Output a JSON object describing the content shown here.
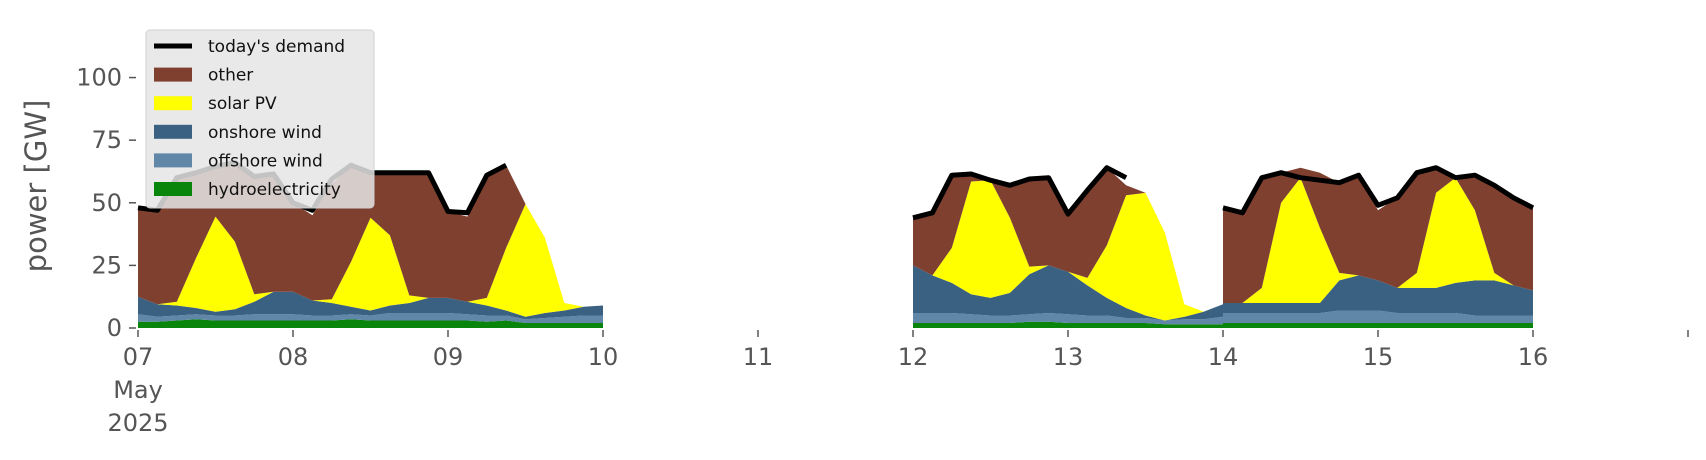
{
  "chart_data": {
    "type": "area",
    "ylabel": "power [GW]",
    "ylim": [
      0,
      115
    ],
    "xlim": [
      "2025-05-07T00:00",
      "2025-05-17T00:00"
    ],
    "yticks": [
      0,
      25,
      50,
      75,
      100
    ],
    "xticks": [
      {
        "x": "2025-05-07T00:00",
        "label": "07",
        "sublabel": [
          "May",
          "2025"
        ]
      },
      {
        "x": "2025-05-08T00:00",
        "label": "08"
      },
      {
        "x": "2025-05-09T00:00",
        "label": "09"
      },
      {
        "x": "2025-05-10T00:00",
        "label": "10"
      },
      {
        "x": "2025-05-11T00:00",
        "label": "11"
      },
      {
        "x": "2025-05-12T00:00",
        "label": "12"
      },
      {
        "x": "2025-05-13T00:00",
        "label": "13"
      },
      {
        "x": "2025-05-14T00:00",
        "label": "14"
      },
      {
        "x": "2025-05-15T00:00",
        "label": "15"
      },
      {
        "x": "2025-05-16T00:00",
        "label": "16"
      }
    ],
    "grid": false,
    "legend_position": "upper-left",
    "legend": [
      {
        "name": "today's demand",
        "kind": "line",
        "color": "#000000"
      },
      {
        "name": "other",
        "kind": "patch",
        "color": "#7f4030"
      },
      {
        "name": "solar PV",
        "kind": "patch",
        "color": "#ffff00"
      },
      {
        "name": "onshore wind",
        "kind": "patch",
        "color": "#3b6182"
      },
      {
        "name": "offshore wind",
        "kind": "patch",
        "color": "#6087a8"
      },
      {
        "name": "hydroelectricity",
        "kind": "patch",
        "color": "#08850a"
      }
    ],
    "segments": [
      {
        "x": [
          "2025-05-07T00:00",
          "2025-05-07T03:00",
          "2025-05-07T06:00",
          "2025-05-07T09:00",
          "2025-05-07T12:00",
          "2025-05-07T15:00",
          "2025-05-07T18:00",
          "2025-05-07T21:00",
          "2025-05-08T00:00",
          "2025-05-08T03:00",
          "2025-05-08T06:00",
          "2025-05-08T09:00",
          "2025-05-08T12:00",
          "2025-05-08T15:00",
          "2025-05-08T18:00",
          "2025-05-08T21:00",
          "2025-05-09T00:00",
          "2025-05-09T03:00",
          "2025-05-09T06:00",
          "2025-05-09T09:00",
          "2025-05-09T12:00",
          "2025-05-09T15:00",
          "2025-05-09T18:00",
          "2025-05-09T21:00",
          "2025-05-10T00:00"
        ],
        "hydroelectricity": [
          2.5,
          2.5,
          3,
          3.5,
          3,
          3,
          3,
          3,
          3,
          3,
          3,
          3.5,
          3,
          3,
          3,
          3,
          3,
          3,
          2.5,
          3,
          2,
          2,
          2,
          2,
          2
        ],
        "offshore wind": [
          3,
          2,
          2,
          2,
          2,
          2,
          2.5,
          2.5,
          2.5,
          2,
          2,
          2,
          2,
          3,
          3,
          3,
          3,
          2.5,
          2.5,
          2,
          1.5,
          2,
          2.5,
          3,
          3
        ],
        "onshore wind": [
          7,
          5,
          4,
          2.5,
          1.5,
          2.5,
          5,
          9,
          9,
          6,
          5,
          3,
          2,
          3,
          4,
          6,
          6,
          5,
          4,
          2,
          1,
          2,
          2.5,
          3.5,
          4
        ],
        "solar PV": [
          0,
          0,
          1.5,
          20,
          38,
          27,
          3,
          0,
          0,
          0,
          1.5,
          18,
          37,
          28,
          3,
          0,
          0,
          0,
          3,
          25,
          45,
          30,
          3,
          0,
          0
        ],
        "other": [
          35.5,
          37.5,
          49.5,
          34,
          20,
          31.5,
          47,
          47,
          35.5,
          34,
          46,
          38.5,
          18,
          25,
          49,
          50,
          34.5,
          34,
          49,
          33,
          0,
          0,
          0,
          0,
          0
        ],
        "demand": [
          48,
          47,
          60,
          62,
          64.5,
          66,
          60.5,
          61.5,
          50,
          47,
          59.5,
          65,
          62,
          62,
          62,
          62,
          46.5,
          46,
          61,
          65,
          null,
          null,
          null,
          null,
          null
        ]
      },
      {
        "x": [
          "2025-05-12T00:00",
          "2025-05-12T03:00",
          "2025-05-12T06:00",
          "2025-05-12T09:00",
          "2025-05-12T12:00",
          "2025-05-12T15:00",
          "2025-05-12T18:00",
          "2025-05-12T21:00",
          "2025-05-13T00:00",
          "2025-05-13T03:00",
          "2025-05-13T06:00",
          "2025-05-13T09:00",
          "2025-05-13T12:00",
          "2025-05-13T15:00",
          "2025-05-13T18:00",
          "2025-05-13T21:00",
          "2025-05-14T00:00"
        ],
        "hydroelectricity": [
          2,
          2,
          2,
          2,
          2,
          2,
          2.5,
          2.5,
          2,
          2,
          2,
          2,
          2,
          1.5,
          1.5,
          1.5,
          1.5
        ],
        "offshore wind": [
          4,
          4,
          4,
          3.5,
          3,
          3,
          3,
          3.5,
          3.5,
          3,
          3,
          2,
          2,
          1.5,
          2,
          2,
          3
        ],
        "onshore wind": [
          19,
          15,
          12,
          8,
          7,
          9,
          16,
          19,
          17,
          12,
          7,
          4,
          1,
          0,
          1,
          3,
          5
        ],
        "solar PV": [
          0,
          0,
          14,
          45,
          47,
          30,
          3,
          0,
          0,
          3,
          21,
          45,
          49,
          35,
          5,
          0,
          0
        ],
        "other": [
          19,
          25,
          29,
          3,
          0,
          13,
          35,
          35,
          23,
          35,
          31,
          4,
          0,
          0,
          0,
          0,
          0
        ],
        "demand": [
          44,
          46,
          61,
          61.5,
          59,
          57,
          59.5,
          60,
          45.5,
          55,
          64,
          60,
          null,
          null,
          null,
          null,
          null
        ]
      },
      {
        "x": [
          "2025-05-14T00:00",
          "2025-05-14T03:00",
          "2025-05-14T06:00",
          "2025-05-14T09:00",
          "2025-05-14T12:00",
          "2025-05-14T15:00",
          "2025-05-14T18:00",
          "2025-05-14T21:00",
          "2025-05-15T00:00",
          "2025-05-15T03:00",
          "2025-05-15T06:00",
          "2025-05-15T09:00",
          "2025-05-15T12:00",
          "2025-05-15T15:00",
          "2025-05-15T18:00",
          "2025-05-15T21:00",
          "2025-05-16T00:00"
        ],
        "hydroelectricity": [
          2,
          2,
          2,
          2,
          2,
          2,
          2,
          2,
          2,
          2,
          2,
          2,
          2,
          2,
          2,
          2,
          2
        ],
        "offshore wind": [
          4,
          4,
          4,
          4,
          4,
          4,
          5,
          5,
          5,
          4,
          4,
          4,
          4,
          3,
          3,
          3,
          3
        ],
        "onshore wind": [
          4,
          4,
          4,
          4,
          4,
          4,
          12,
          14,
          12,
          10,
          10,
          10,
          12,
          14,
          14,
          12,
          10
        ],
        "solar PV": [
          0,
          0,
          6,
          40,
          50,
          30,
          3,
          0,
          0,
          0,
          6,
          38,
          42,
          28,
          3,
          0,
          0
        ],
        "other": [
          38,
          36,
          44,
          12,
          4,
          22,
          36,
          40,
          28,
          36,
          40,
          10,
          0,
          13,
          35,
          35,
          33
        ],
        "demand": [
          48,
          46,
          60,
          62,
          60,
          59,
          58,
          61,
          49,
          52,
          62,
          64,
          60,
          61,
          57,
          52,
          48
        ]
      }
    ]
  }
}
